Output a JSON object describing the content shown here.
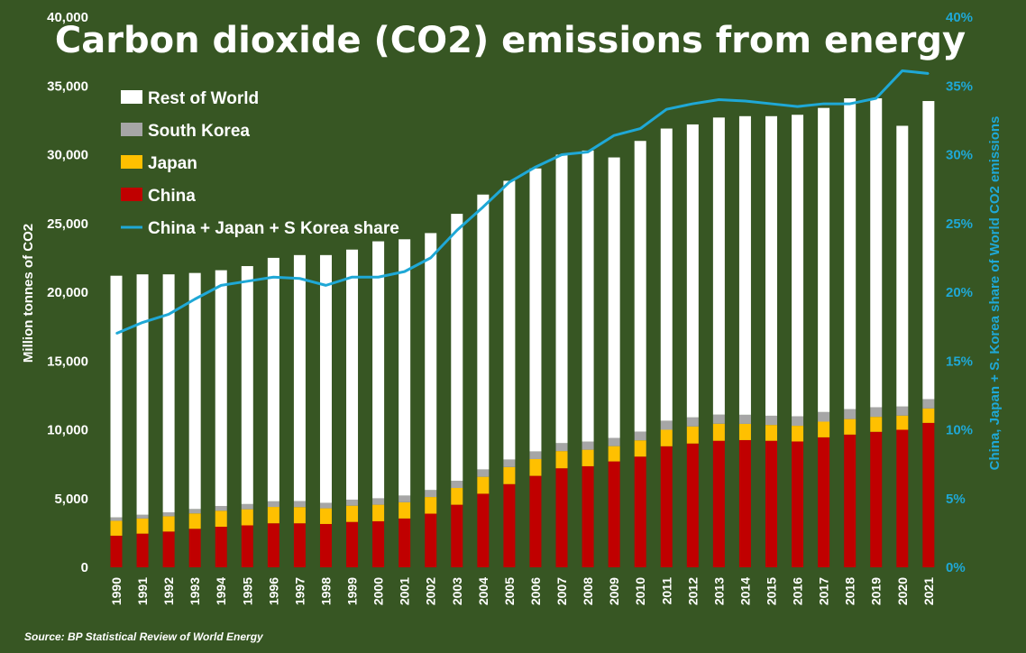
{
  "colors": {
    "background": "#375623",
    "rest_of_world": "#ffffff",
    "south_korea": "#a6a6a6",
    "japan": "#ffc000",
    "china": "#c00000",
    "share_line": "#1fa8d6",
    "right_axis_text": "#1fa8d6"
  },
  "chart_data": {
    "type": "bar",
    "stacked": true,
    "title": "Carbon dioxide (CO2) emissions from energy",
    "ylabel": "Million tonnes of CO2",
    "y2label": "China, Japan + S. Korea share of World CO2 emissions",
    "source": "Source: BP Statistical Review of World Energy",
    "ylim": [
      0,
      40000
    ],
    "y2lim": [
      0,
      40
    ],
    "yticks": [
      0,
      5000,
      10000,
      15000,
      20000,
      25000,
      30000,
      35000,
      40000
    ],
    "yticks_labels": [
      "0",
      "5,000",
      "10,000",
      "15,000",
      "20,000",
      "25,000",
      "30,000",
      "35,000",
      "40,000"
    ],
    "y2ticks": [
      0,
      5,
      10,
      15,
      20,
      25,
      30,
      35,
      40
    ],
    "y2ticks_labels": [
      "0%",
      "5%",
      "10%",
      "15%",
      "20%",
      "25%",
      "30%",
      "35%",
      "40%"
    ],
    "legend_position": "top-left",
    "categories": [
      "1990",
      "1991",
      "1992",
      "1993",
      "1994",
      "1995",
      "1996",
      "1997",
      "1998",
      "1999",
      "2000",
      "2001",
      "2002",
      "2003",
      "2004",
      "2005",
      "2006",
      "2007",
      "2008",
      "2009",
      "2010",
      "2011",
      "2012",
      "2013",
      "2014",
      "2015",
      "2016",
      "2017",
      "2018",
      "2019",
      "2020",
      "2021"
    ],
    "series": [
      {
        "name": "China",
        "key": "china",
        "values": [
          2300,
          2450,
          2600,
          2800,
          2950,
          3050,
          3200,
          3200,
          3150,
          3300,
          3350,
          3550,
          3900,
          4550,
          5350,
          6050,
          6650,
          7200,
          7350,
          7700,
          8050,
          8800,
          9000,
          9200,
          9250,
          9200,
          9150,
          9450,
          9650,
          9850,
          10000,
          10500
        ]
      },
      {
        "name": "Japan",
        "key": "japan",
        "values": [
          1080,
          1100,
          1110,
          1120,
          1160,
          1170,
          1190,
          1180,
          1140,
          1180,
          1200,
          1180,
          1210,
          1220,
          1230,
          1240,
          1220,
          1250,
          1200,
          1110,
          1180,
          1200,
          1240,
          1240,
          1180,
          1150,
          1140,
          1140,
          1130,
          1090,
          1030,
          1050
        ]
      },
      {
        "name": "South Korea",
        "key": "south_korea",
        "values": [
          250,
          270,
          290,
          320,
          350,
          380,
          410,
          440,
          400,
          440,
          470,
          490,
          510,
          520,
          540,
          550,
          560,
          580,
          590,
          600,
          640,
          660,
          660,
          660,
          660,
          670,
          690,
          700,
          720,
          700,
          660,
          680
        ]
      },
      {
        "name": "Rest of World",
        "key": "rest_of_world",
        "values": [
          17570,
          17480,
          17300,
          17160,
          17140,
          17300,
          17700,
          17880,
          18010,
          18180,
          18680,
          18630,
          18680,
          19410,
          19980,
          20260,
          20570,
          20970,
          21160,
          20390,
          21130,
          21240,
          21300,
          21600,
          21710,
          21780,
          21920,
          22110,
          22600,
          22460,
          20410,
          21670
        ]
      },
      {
        "name": "China + Japan + S Korea share",
        "key": "share",
        "axis": "right",
        "type": "line",
        "values": [
          17.0,
          17.8,
          18.4,
          19.5,
          20.5,
          20.8,
          21.1,
          21.0,
          20.5,
          21.1,
          21.1,
          21.5,
          22.5,
          24.5,
          26.2,
          28.0,
          29.1,
          30.0,
          30.2,
          31.4,
          31.9,
          33.3,
          33.7,
          34.0,
          33.9,
          33.7,
          33.5,
          33.7,
          33.7,
          34.1,
          36.1,
          35.9
        ]
      }
    ],
    "legend": [
      "Rest of World",
      "South Korea",
      "Japan",
      "China",
      "China + Japan + S Korea share"
    ]
  }
}
